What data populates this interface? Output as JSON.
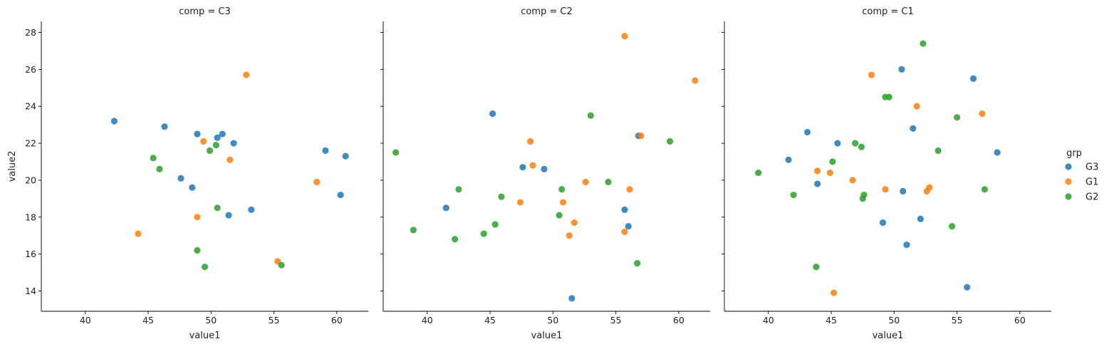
{
  "colors": {
    "G3": "#1f77b4",
    "G1": "#ff7f0e",
    "G2": "#2ca02c"
  },
  "chart_data": {
    "type": "scatter",
    "facet_variable": "comp",
    "xlabel": "value1",
    "ylabel": "value2",
    "xlim": [
      36.5,
      62.5
    ],
    "ylim": [
      12.9,
      28.6
    ],
    "xticks": [
      "40",
      "45",
      "50",
      "55",
      "60"
    ],
    "yticks": [
      "14",
      "16",
      "18",
      "20",
      "22",
      "24",
      "26",
      "28"
    ],
    "grid": false,
    "legend": {
      "title": "grp",
      "placement": "right",
      "entries": [
        "G3",
        "G1",
        "G2"
      ]
    },
    "panels": [
      {
        "title": "comp = C3",
        "series": [
          {
            "name": "G3",
            "points": [
              [
                42.3,
                23.2
              ],
              [
                46.3,
                22.9
              ],
              [
                48.9,
                22.5
              ],
              [
                50.5,
                22.3
              ],
              [
                50.9,
                22.5
              ],
              [
                51.8,
                22.0
              ],
              [
                47.6,
                20.1
              ],
              [
                48.5,
                19.6
              ],
              [
                51.4,
                18.1
              ],
              [
                53.2,
                18.4
              ],
              [
                59.1,
                21.6
              ],
              [
                60.7,
                21.3
              ],
              [
                60.3,
                19.2
              ]
            ]
          },
          {
            "name": "G1",
            "points": [
              [
                52.8,
                25.7
              ],
              [
                49.4,
                22.1
              ],
              [
                51.5,
                21.1
              ],
              [
                58.4,
                19.9
              ],
              [
                48.9,
                18.0
              ],
              [
                44.2,
                17.1
              ],
              [
                55.3,
                15.6
              ]
            ]
          },
          {
            "name": "G2",
            "points": [
              [
                45.4,
                21.2
              ],
              [
                45.9,
                20.6
              ],
              [
                49.9,
                21.6
              ],
              [
                50.4,
                21.9
              ],
              [
                50.5,
                18.5
              ],
              [
                48.9,
                16.2
              ],
              [
                49.5,
                15.3
              ],
              [
                55.6,
                15.4
              ]
            ]
          }
        ]
      },
      {
        "title": "comp = C2",
        "series": [
          {
            "name": "G3",
            "points": [
              [
                45.2,
                23.6
              ],
              [
                47.6,
                20.7
              ],
              [
                49.3,
                20.6
              ],
              [
                41.5,
                18.5
              ],
              [
                56.8,
                22.4
              ],
              [
                55.7,
                18.4
              ],
              [
                56.0,
                17.5
              ],
              [
                51.5,
                13.6
              ]
            ]
          },
          {
            "name": "G1",
            "points": [
              [
                55.7,
                27.8
              ],
              [
                61.3,
                25.4
              ],
              [
                48.2,
                22.1
              ],
              [
                48.4,
                20.8
              ],
              [
                52.6,
                19.9
              ],
              [
                56.1,
                19.5
              ],
              [
                47.4,
                18.8
              ],
              [
                50.8,
                18.8
              ],
              [
                51.7,
                17.7
              ],
              [
                51.3,
                17.0
              ],
              [
                55.7,
                17.2
              ],
              [
                57.0,
                22.4
              ]
            ]
          },
          {
            "name": "G2",
            "points": [
              [
                37.5,
                21.5
              ],
              [
                38.9,
                17.3
              ],
              [
                42.5,
                19.5
              ],
              [
                45.9,
                19.1
              ],
              [
                42.2,
                16.8
              ],
              [
                44.5,
                17.1
              ],
              [
                45.4,
                17.6
              ],
              [
                50.7,
                19.5
              ],
              [
                50.5,
                18.1
              ],
              [
                53.0,
                23.5
              ],
              [
                54.4,
                19.9
              ],
              [
                59.3,
                22.1
              ],
              [
                56.7,
                15.5
              ]
            ]
          }
        ]
      },
      {
        "title": "comp = C1",
        "series": [
          {
            "name": "G3",
            "points": [
              [
                50.6,
                26.0
              ],
              [
                56.3,
                25.5
              ],
              [
                51.5,
                22.8
              ],
              [
                43.1,
                22.6
              ],
              [
                45.5,
                22.0
              ],
              [
                41.6,
                21.1
              ],
              [
                58.2,
                21.5
              ],
              [
                43.9,
                19.8
              ],
              [
                50.7,
                19.4
              ],
              [
                49.1,
                17.7
              ],
              [
                52.1,
                17.9
              ],
              [
                51.0,
                16.5
              ],
              [
                55.8,
                14.2
              ]
            ]
          },
          {
            "name": "G1",
            "points": [
              [
                48.2,
                25.7
              ],
              [
                51.8,
                24.0
              ],
              [
                57.0,
                23.6
              ],
              [
                43.9,
                20.5
              ],
              [
                44.9,
                20.4
              ],
              [
                46.7,
                20.0
              ],
              [
                49.3,
                19.5
              ],
              [
                52.6,
                19.4
              ],
              [
                52.8,
                19.6
              ],
              [
                45.2,
                13.9
              ]
            ]
          },
          {
            "name": "G2",
            "points": [
              [
                52.3,
                27.4
              ],
              [
                49.3,
                24.5
              ],
              [
                49.6,
                24.5
              ],
              [
                55.0,
                23.4
              ],
              [
                46.9,
                22.0
              ],
              [
                47.4,
                21.8
              ],
              [
                45.1,
                21.0
              ],
              [
                53.5,
                21.6
              ],
              [
                39.2,
                20.4
              ],
              [
                42.0,
                19.2
              ],
              [
                47.6,
                19.2
              ],
              [
                47.5,
                19.0
              ],
              [
                57.2,
                19.5
              ],
              [
                54.6,
                17.5
              ],
              [
                43.8,
                15.3
              ]
            ]
          }
        ]
      }
    ]
  }
}
